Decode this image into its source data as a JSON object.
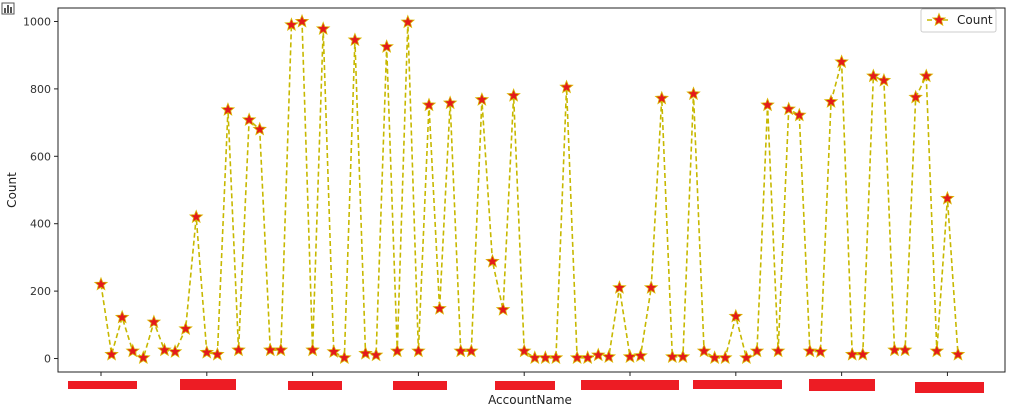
{
  "toolbar": {
    "chart_icon": "bar-chart-icon"
  },
  "colors": {
    "line": "#c7b800",
    "marker_fill": "#e31a1c",
    "marker_edge": "#d9b600",
    "redaction": "#ed1c24",
    "axis": "#222222"
  },
  "chart_data": {
    "type": "line",
    "title": "",
    "xlabel": "AccountName",
    "ylabel": "Count",
    "ylim": [
      -40,
      1040
    ],
    "yticks": [
      0,
      200,
      400,
      600,
      800,
      1000
    ],
    "grid": false,
    "legend_position": "top-right",
    "x_tick_labels": [
      "",
      "",
      "",
      "",
      "",
      "",
      "",
      "",
      ""
    ],
    "series": [
      {
        "name": "Count",
        "values": [
          220,
          12,
          122,
          22,
          2,
          108,
          25,
          20,
          88,
          420,
          18,
          12,
          738,
          25,
          708,
          680,
          25,
          25,
          990,
          1000,
          25,
          978,
          20,
          2,
          945,
          15,
          10,
          925,
          22,
          998,
          22,
          752,
          148,
          758,
          22,
          22,
          768,
          288,
          145,
          780,
          22,
          2,
          2,
          2,
          805,
          2,
          2,
          10,
          5,
          210,
          5,
          8,
          210,
          772,
          5,
          5,
          785,
          22,
          2,
          2,
          125,
          2,
          22,
          752,
          22,
          740,
          722,
          22,
          20,
          762,
          880,
          12,
          12,
          838,
          825,
          25,
          25,
          775,
          838,
          22,
          475,
          12
        ]
      }
    ]
  }
}
